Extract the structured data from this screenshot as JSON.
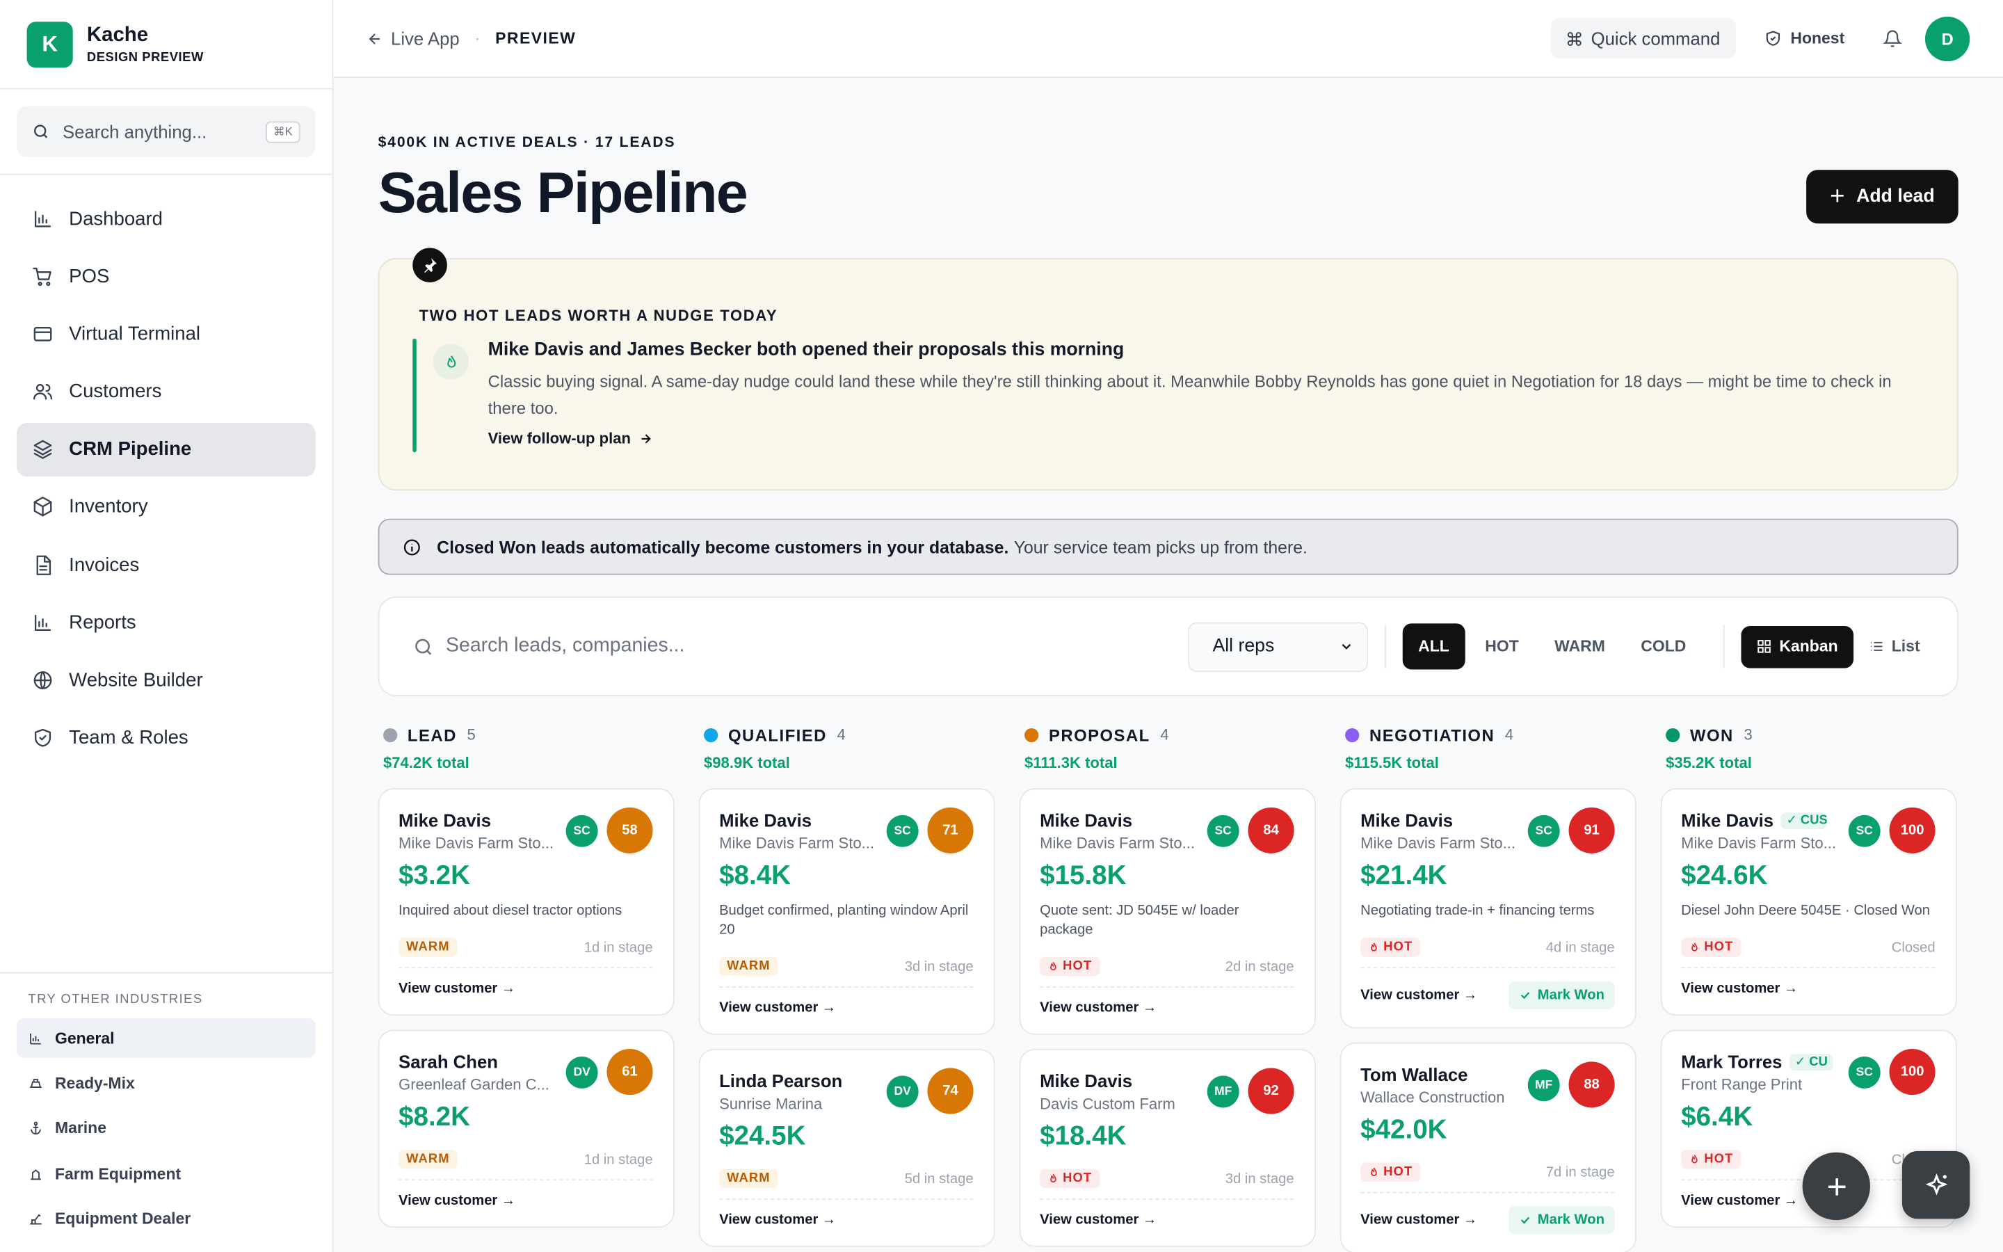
{
  "brand": {
    "logo_letter": "K",
    "name": "Kache",
    "subtitle": "DESIGN PREVIEW"
  },
  "sidebar": {
    "search_placeholder": "Search anything...",
    "search_shortcut": "⌘K",
    "items": [
      {
        "label": "Dashboard",
        "icon": "bar-chart-icon"
      },
      {
        "label": "POS",
        "icon": "cart-icon"
      },
      {
        "label": "Virtual Terminal",
        "icon": "credit-card-icon"
      },
      {
        "label": "Customers",
        "icon": "users-icon"
      },
      {
        "label": "CRM Pipeline",
        "icon": "layers-icon",
        "active": true
      },
      {
        "label": "Inventory",
        "icon": "box-icon"
      },
      {
        "label": "Invoices",
        "icon": "file-icon"
      },
      {
        "label": "Reports",
        "icon": "bar-chart-icon"
      },
      {
        "label": "Website Builder",
        "icon": "globe-icon"
      },
      {
        "label": "Team & Roles",
        "icon": "shield-icon"
      }
    ],
    "industries_title": "TRY OTHER INDUSTRIES",
    "industries": [
      "General",
      "Ready-Mix",
      "Marine",
      "Farm Equipment",
      "Equipment Dealer"
    ]
  },
  "topbar": {
    "back_label": "Live App",
    "separator": "·",
    "mode_label": "PREVIEW",
    "quick_command": "Quick command",
    "honest": "Honest",
    "avatar": "D"
  },
  "header": {
    "eyebrow": "$400K IN ACTIVE DEALS · 17 LEADS",
    "title": "Sales Pipeline",
    "add_lead": "Add lead"
  },
  "insight": {
    "title": "TWO HOT LEADS WORTH A NUDGE TODAY",
    "headline": "Mike Davis and James Becker both opened their proposals this morning",
    "body": "Classic buying signal. A same-day nudge could land these while they're still thinking about it. Meanwhile Bobby Reynolds has gone quiet in Negotiation for 18 days — might be time to check in there too.",
    "link": "View follow-up plan"
  },
  "notice": {
    "bold": "Closed Won leads automatically become customers in your database.",
    "rest": "Your service team picks up from there."
  },
  "filters": {
    "search_placeholder": "Search leads, companies...",
    "rep_select": "All reps",
    "temps": [
      "ALL",
      "HOT",
      "WARM",
      "COLD"
    ],
    "views": [
      "Kanban",
      "List"
    ]
  },
  "colors": {
    "accent": "#0a9f6e",
    "lead": "#9ca3af",
    "qualified": "#0ea5e9",
    "proposal": "#d97706",
    "negotiation": "#8b5cf6",
    "won": "#059669",
    "warm_score": "#d97706",
    "hot_score": "#dc2626"
  },
  "columns": [
    {
      "name": "LEAD",
      "count": "5",
      "total": "$74.2K total",
      "dot": "#9ca3af",
      "cards": [
        {
          "name": "Mike Davis",
          "company": "Mike Davis Farm Sto...",
          "rep": "SC",
          "score": "58",
          "score_color": "#d97706",
          "amount": "$3.2K",
          "note": "Inquired about diesel tractor options",
          "temp": "WARM",
          "stage": "1d in stage",
          "link": "View customer →"
        },
        {
          "name": "Sarah Chen",
          "company": "Greenleaf Garden C...",
          "rep": "DV",
          "score": "61",
          "score_color": "#d97706",
          "amount": "$8.2K",
          "note": "",
          "temp": "WARM",
          "stage": "1d in stage",
          "link": "View customer →"
        }
      ]
    },
    {
      "name": "QUALIFIED",
      "count": "4",
      "total": "$98.9K total",
      "dot": "#0ea5e9",
      "cards": [
        {
          "name": "Mike Davis",
          "company": "Mike Davis Farm Sto...",
          "rep": "SC",
          "score": "71",
          "score_color": "#d97706",
          "amount": "$8.4K",
          "note": "Budget confirmed, planting window April 20",
          "temp": "WARM",
          "stage": "3d in stage",
          "link": "View customer →"
        },
        {
          "name": "Linda Pearson",
          "company": "Sunrise Marina",
          "rep": "DV",
          "score": "74",
          "score_color": "#d97706",
          "amount": "$24.5K",
          "note": "",
          "temp": "WARM",
          "stage": "5d in stage",
          "link": "View customer →"
        }
      ]
    },
    {
      "name": "PROPOSAL",
      "count": "4",
      "total": "$111.3K total",
      "dot": "#d97706",
      "cards": [
        {
          "name": "Mike Davis",
          "company": "Mike Davis Farm Sto...",
          "rep": "SC",
          "score": "84",
          "score_color": "#dc2626",
          "amount": "$15.8K",
          "note": "Quote sent: JD 5045E w/ loader package",
          "temp": "HOT",
          "stage": "2d in stage",
          "link": "View customer →"
        },
        {
          "name": "Mike Davis",
          "company": "Davis Custom Farm",
          "rep": "MF",
          "score": "92",
          "score_color": "#dc2626",
          "amount": "$18.4K",
          "note": "",
          "temp": "HOT",
          "stage": "3d in stage",
          "link": "View customer →"
        }
      ]
    },
    {
      "name": "NEGOTIATION",
      "count": "4",
      "total": "$115.5K total",
      "dot": "#8b5cf6",
      "cards": [
        {
          "name": "Mike Davis",
          "company": "Mike Davis Farm Sto...",
          "rep": "SC",
          "score": "91",
          "score_color": "#dc2626",
          "amount": "$21.4K",
          "note": "Negotiating trade-in + financing terms",
          "temp": "HOT",
          "stage": "4d in stage",
          "link": "View customer →",
          "mark_won": "Mark Won"
        },
        {
          "name": "Tom Wallace",
          "company": "Wallace Construction",
          "rep": "MF",
          "score": "88",
          "score_color": "#dc2626",
          "amount": "$42.0K",
          "note": "",
          "temp": "HOT",
          "stage": "7d in stage",
          "link": "View customer →",
          "mark_won": "Mark Won"
        }
      ]
    },
    {
      "name": "WON",
      "count": "3",
      "total": "$35.2K total",
      "dot": "#059669",
      "cards": [
        {
          "name": "Mike Davis",
          "badge": "✓ CUS",
          "company": "Mike Davis Farm Sto...",
          "rep": "SC",
          "score": "100",
          "score_color": "#dc2626",
          "amount": "$24.6K",
          "note": "Diesel John Deere 5045E · Closed Won",
          "temp": "HOT",
          "stage": "Closed",
          "link": "View customer →"
        },
        {
          "name": "Mark Torres",
          "badge": "✓ CU",
          "company": "Front Range Print",
          "rep": "SC",
          "score": "100",
          "score_color": "#dc2626",
          "amount": "$6.4K",
          "note": "",
          "temp": "HOT",
          "stage": "Closed",
          "link": "View customer →"
        }
      ]
    }
  ]
}
